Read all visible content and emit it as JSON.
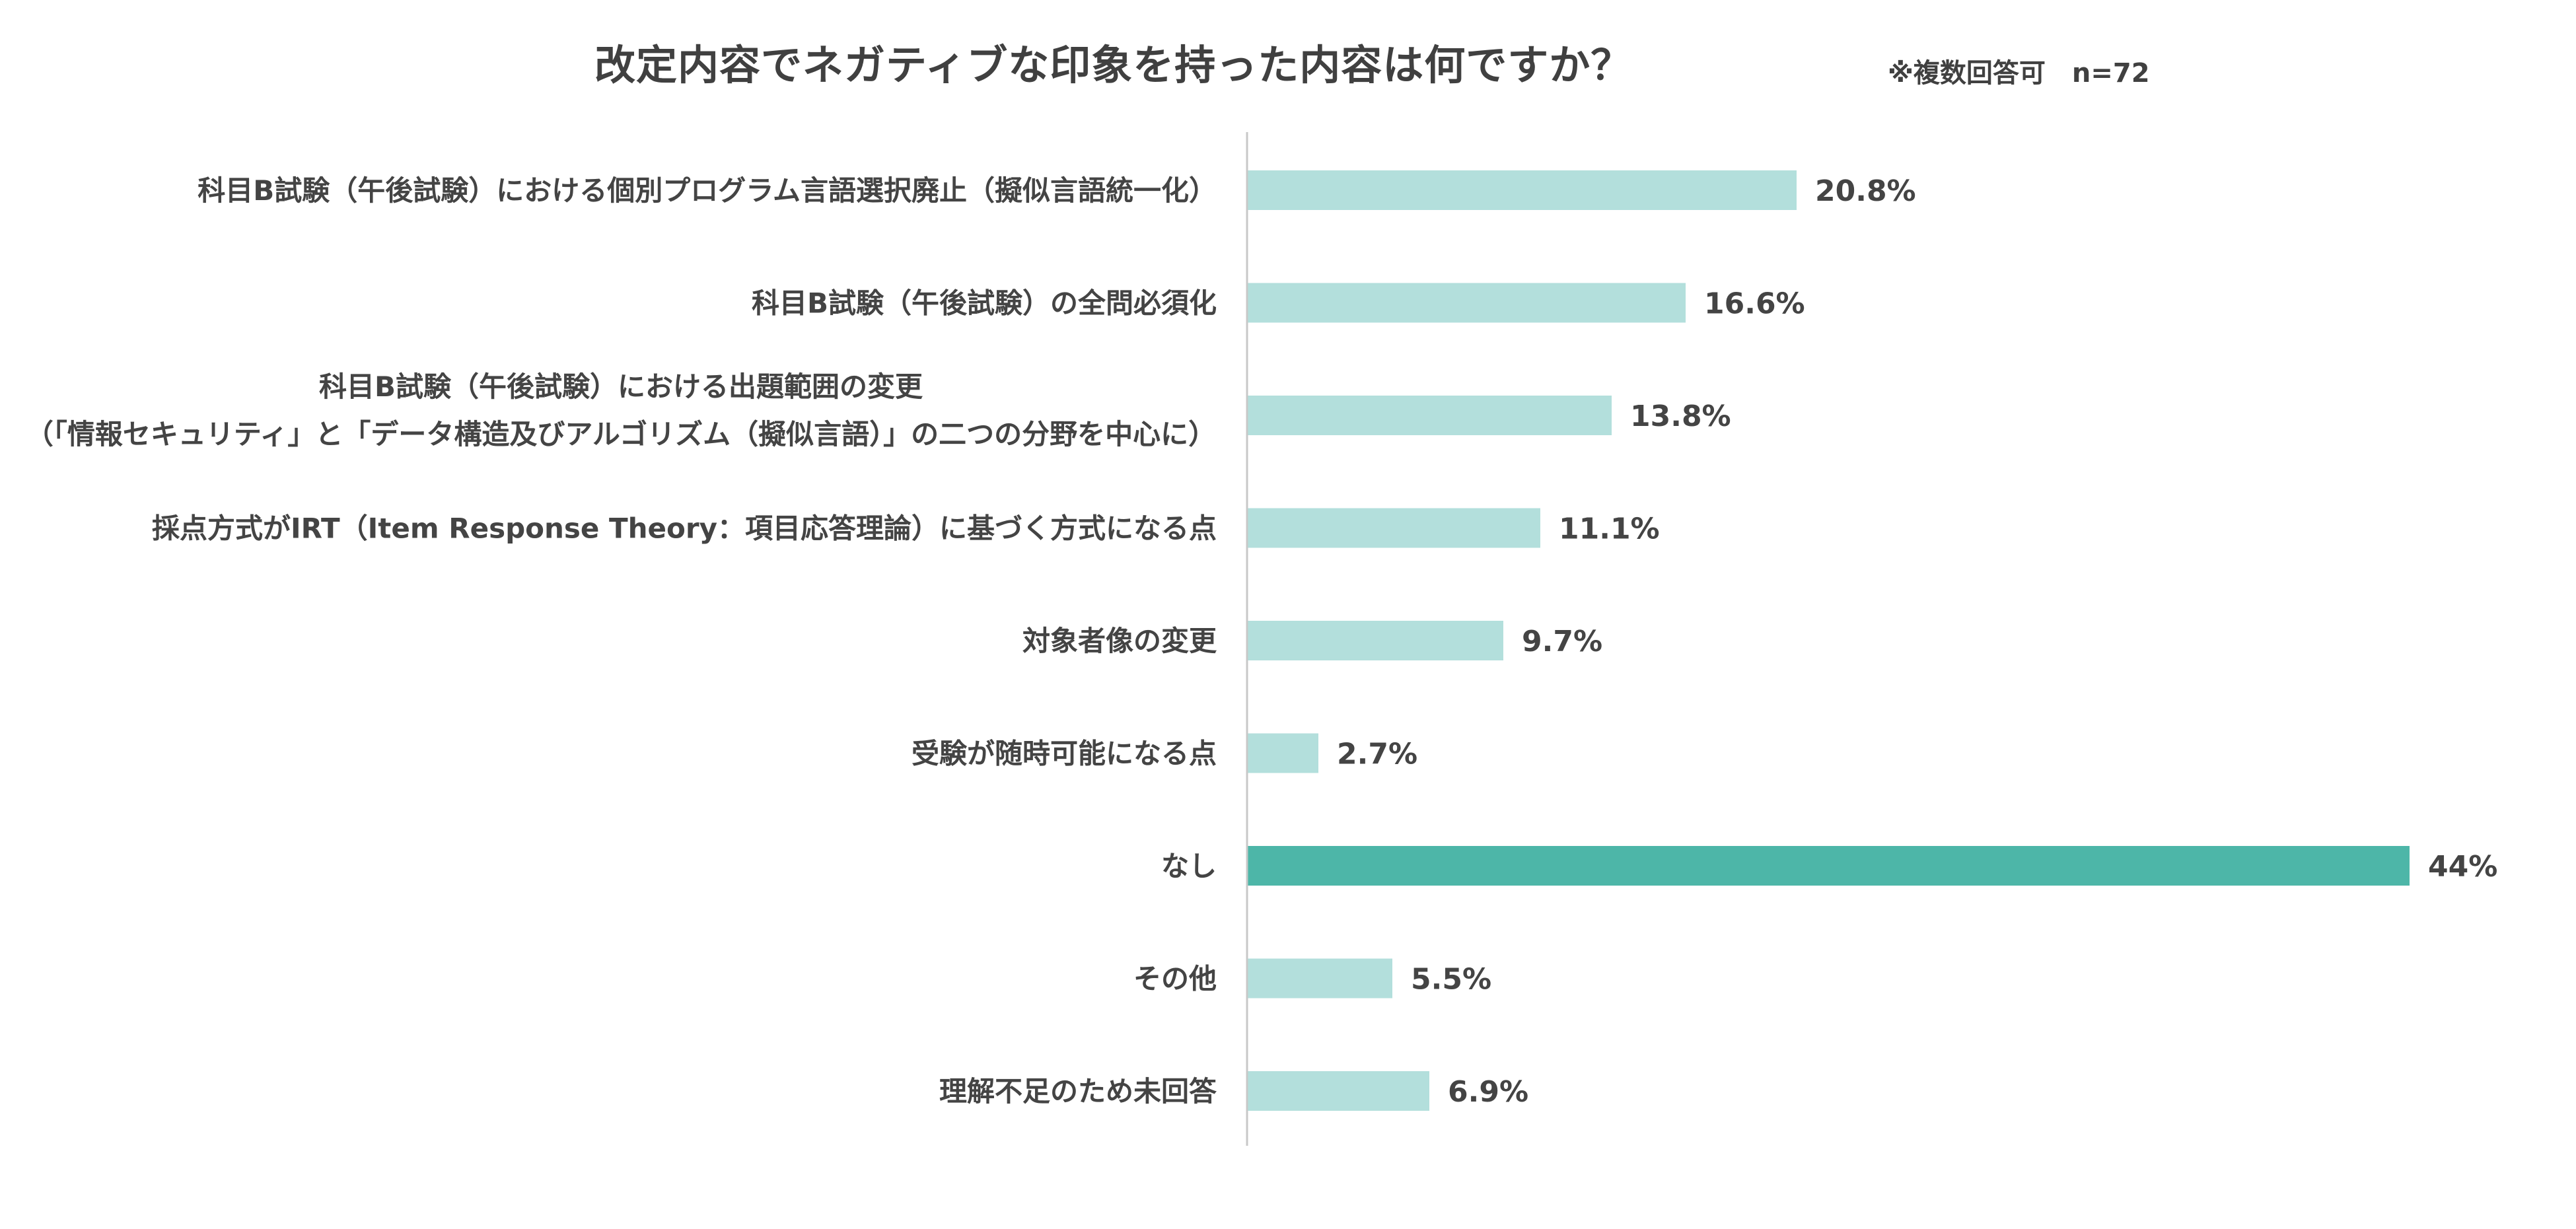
{
  "chart_data": {
    "type": "bar",
    "orientation": "horizontal",
    "title": "改定内容でネガティブな印象を持った内容は何ですか？",
    "note": "※複数回答可　n=72",
    "categories": [
      "科目B試験（午後試験）における個別プログラム言語選択廃止（擬似言語統一化）",
      "科目B試験（午後試験）の全問必須化",
      "科目B試験（午後試験）における出題範囲の変更\n（「情報セキュリティ」と「データ構造及びアルゴリズム（擬似言語）」の二つの分野を中心に）",
      "採点方式がIRT（Item Response Theory：項目応答理論）に基づく方式になる点",
      "対象者像の変更",
      "受験が随時可能になる点",
      "なし",
      "その他",
      "理解不足のため未回答"
    ],
    "values": [
      20.8,
      16.6,
      13.8,
      11.1,
      9.7,
      2.7,
      44,
      5.5,
      6.9
    ],
    "value_labels": [
      "20.8%",
      "16.6%",
      "13.8%",
      "11.1%",
      "9.7%",
      "2.7%",
      "44%",
      "5.5%",
      "6.9%"
    ],
    "highlight_index": 6,
    "xlim": [
      0,
      44
    ],
    "grid": false,
    "xlabel": "",
    "ylabel": ""
  },
  "colors": {
    "bar": "#b3dfdc",
    "highlight_bar": "#4db6a8",
    "axis": "#c8c8c8",
    "text": "#444444"
  }
}
